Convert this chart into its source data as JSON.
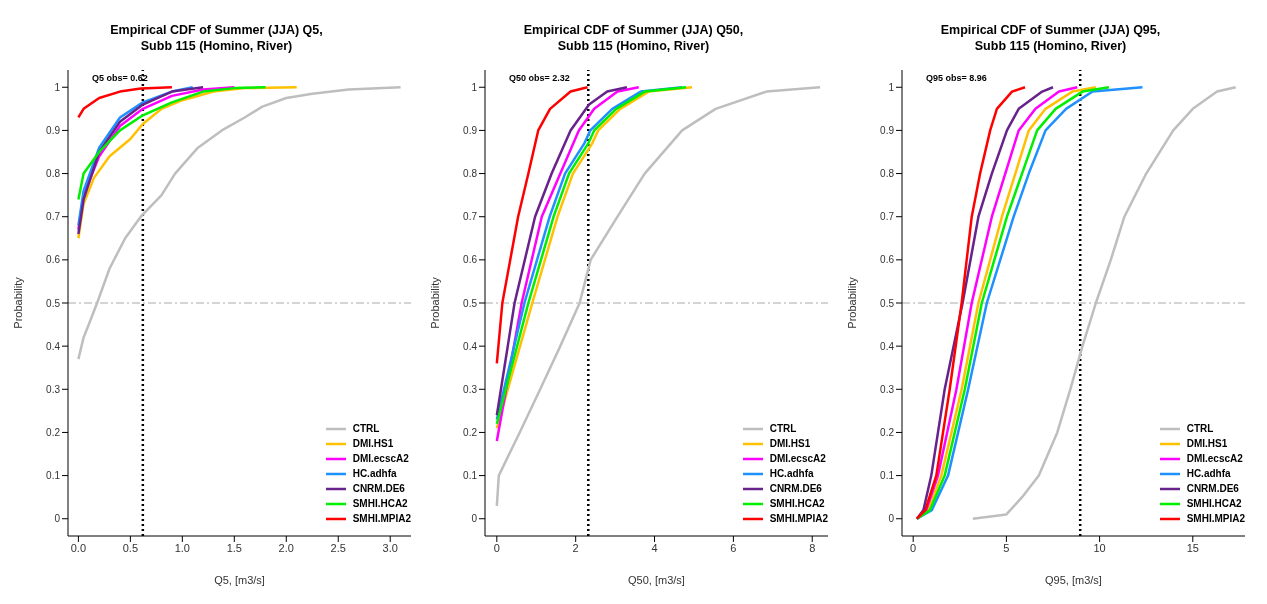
{
  "chart_data": [
    {
      "type": "line",
      "title": "Empirical CDF of Summer (JJA) Q5,\nSubb 115 (Homino, River)",
      "xlabel": "Q5, [m3/s]",
      "ylabel": "Probability",
      "xlim": [
        -0.1,
        3.2
      ],
      "xticks": [
        {
          "value": 0,
          "label": "0.0"
        },
        {
          "value": 0.5,
          "label": "0.5"
        },
        {
          "value": 1,
          "label": "1.0"
        },
        {
          "value": 1.5,
          "label": "1.5"
        },
        {
          "value": 2,
          "label": "2.0"
        },
        {
          "value": 2.5,
          "label": "2.5"
        },
        {
          "value": 3,
          "label": "3.0"
        }
      ],
      "ylim": [
        -0.04,
        1.04
      ],
      "yticks": [
        0,
        0.1,
        0.2,
        0.3,
        0.4,
        0.5,
        0.6,
        0.7,
        0.8,
        0.9,
        1
      ],
      "legend": "bottom right",
      "marker": "none",
      "annotations": [
        "Q5 obs= 0.62"
      ],
      "ref_lines": [
        {
          "axis": "x",
          "value": 0.62,
          "color": "#000000",
          "line_style": "dotted"
        },
        {
          "axis": "y",
          "value": 0.5,
          "color": "#aaaaaa",
          "line_style": "dashed"
        }
      ],
      "series": [
        {
          "name": "CTRL",
          "color": "#bebebe",
          "x": [
            0,
            0.05,
            0.1,
            0.18,
            0.3,
            0.45,
            0.6,
            0.8,
            0.93,
            1.15,
            1.38,
            1.6,
            1.77,
            2.0,
            2.25,
            2.6,
            3.1
          ],
          "values": [
            0.37,
            0.42,
            0.45,
            0.5,
            0.58,
            0.65,
            0.7,
            0.75,
            0.8,
            0.86,
            0.9,
            0.93,
            0.955,
            0.975,
            0.985,
            0.995,
            1
          ]
        },
        {
          "name": "DMI.HS1",
          "color": "#ffc000",
          "x": [
            0,
            0.05,
            0.15,
            0.3,
            0.5,
            0.62,
            0.8,
            1.0,
            1.3,
            1.6,
            2.1
          ],
          "values": [
            0.65,
            0.73,
            0.79,
            0.84,
            0.88,
            0.915,
            0.95,
            0.97,
            0.99,
            0.998,
            1
          ]
        },
        {
          "name": "DMI.ecscA2",
          "color": "#ff00ff",
          "x": [
            0,
            0.05,
            0.2,
            0.4,
            0.62,
            0.9,
            1.2,
            1.5
          ],
          "values": [
            0.67,
            0.75,
            0.84,
            0.91,
            0.95,
            0.98,
            0.995,
            1
          ]
        },
        {
          "name": "HC.adhfa",
          "color": "#1e90ff",
          "x": [
            0,
            0.05,
            0.2,
            0.4,
            0.62,
            0.9,
            1.1
          ],
          "values": [
            0.68,
            0.76,
            0.86,
            0.93,
            0.965,
            0.99,
            1
          ]
        },
        {
          "name": "CNRM.DE6",
          "color": "#68228b",
          "x": [
            0,
            0.05,
            0.2,
            0.4,
            0.62,
            0.9,
            1.2
          ],
          "values": [
            0.66,
            0.74,
            0.85,
            0.92,
            0.96,
            0.99,
            1
          ]
        },
        {
          "name": "SMHI.HCA2",
          "color": "#00ee00",
          "x": [
            0,
            0.05,
            0.2,
            0.4,
            0.62,
            0.9,
            1.2,
            1.5,
            1.8
          ],
          "values": [
            0.74,
            0.8,
            0.85,
            0.9,
            0.935,
            0.965,
            0.99,
            0.998,
            1
          ]
        },
        {
          "name": "SMHI.MPIA2",
          "color": "#ff0000",
          "x": [
            0,
            0.05,
            0.2,
            0.4,
            0.6,
            0.9
          ],
          "values": [
            0.93,
            0.95,
            0.975,
            0.99,
            0.997,
            1
          ]
        }
      ]
    },
    {
      "type": "line",
      "title": "Empirical CDF of Summer (JJA) Q50,\nSubb 115 (Homino, River)",
      "xlabel": "Q50, [m3/s]",
      "ylabel": "Probability",
      "xlim": [
        -0.3,
        8.4
      ],
      "xticks": [
        0,
        2,
        4,
        6,
        8
      ],
      "ylim": [
        -0.04,
        1.04
      ],
      "yticks": [
        0,
        0.1,
        0.2,
        0.3,
        0.4,
        0.5,
        0.6,
        0.7,
        0.8,
        0.9,
        1
      ],
      "legend": "bottom right",
      "marker": "none",
      "annotations": [
        "Q50 obs= 2.32"
      ],
      "ref_lines": [
        {
          "axis": "x",
          "value": 2.32,
          "color": "#000000",
          "line_style": "dotted"
        },
        {
          "axis": "y",
          "value": 0.5,
          "color": "#aaaaaa",
          "line_style": "dashed"
        }
      ],
      "series": [
        {
          "name": "CTRL",
          "color": "#bebebe",
          "x": [
            0,
            0.05,
            0.58,
            1.1,
            1.61,
            2.1,
            2.38,
            3.06,
            3.75,
            4.7,
            5.55,
            6.84,
            8.2
          ],
          "values": [
            0.03,
            0.1,
            0.2,
            0.3,
            0.4,
            0.5,
            0.6,
            0.7,
            0.8,
            0.9,
            0.95,
            0.99,
            1
          ]
        },
        {
          "name": "DMI.HS1",
          "color": "#ffc000",
          "x": [
            0,
            0.9,
            1.54,
            1.93,
            2.42,
            2.57,
            3.13,
            3.85,
            4.95
          ],
          "values": [
            0.21,
            0.5,
            0.7,
            0.8,
            0.87,
            0.9,
            0.95,
            0.99,
            1
          ]
        },
        {
          "name": "DMI.ecscA2",
          "color": "#ff00ff",
          "x": [
            0,
            0.63,
            1.14,
            1.61,
            2.08,
            2.47,
            3.06,
            3.6
          ],
          "values": [
            0.18,
            0.5,
            0.7,
            0.8,
            0.9,
            0.95,
            0.99,
            1
          ]
        },
        {
          "name": "HC.adhfa",
          "color": "#1e90ff",
          "x": [
            0,
            0.7,
            1.34,
            1.73,
            2.22,
            2.37,
            2.93,
            3.65,
            4.7
          ],
          "values": [
            0.23,
            0.5,
            0.7,
            0.8,
            0.87,
            0.9,
            0.95,
            0.99,
            1
          ]
        },
        {
          "name": "CNRM.DE6",
          "color": "#68228b",
          "x": [
            0,
            0.45,
            0.97,
            1.39,
            1.87,
            2.34,
            2.8,
            3.3
          ],
          "values": [
            0.24,
            0.5,
            0.7,
            0.8,
            0.9,
            0.96,
            0.99,
            1
          ]
        },
        {
          "name": "SMHI.HCA2",
          "color": "#00ee00",
          "x": [
            0,
            0.8,
            1.44,
            1.83,
            2.32,
            2.47,
            3.03,
            3.75,
            4.8
          ],
          "values": [
            0.22,
            0.5,
            0.7,
            0.8,
            0.87,
            0.9,
            0.95,
            0.99,
            1
          ]
        },
        {
          "name": "SMHI.MPIA2",
          "color": "#ff0000",
          "x": [
            0,
            0.14,
            0.54,
            0.8,
            1.05,
            1.35,
            1.87,
            2.3
          ],
          "values": [
            0.36,
            0.5,
            0.7,
            0.8,
            0.9,
            0.95,
            0.99,
            1
          ]
        }
      ]
    },
    {
      "type": "line",
      "title": "Empirical CDF of Summer (JJA) Q95,\nSubb 115 (Homino, River)",
      "xlabel": "Q95, [m3/s]",
      "ylabel": "Probability",
      "xlim": [
        -0.6,
        17.8
      ],
      "xticks": [
        0,
        5,
        10,
        15
      ],
      "ylim": [
        -0.04,
        1.04
      ],
      "yticks": [
        0,
        0.1,
        0.2,
        0.3,
        0.4,
        0.5,
        0.6,
        0.7,
        0.8,
        0.9,
        1
      ],
      "legend": "bottom right",
      "marker": "none",
      "annotations": [
        "Q95 obs= 8.96"
      ],
      "ref_lines": [
        {
          "axis": "x",
          "value": 8.96,
          "color": "#000000",
          "line_style": "dotted"
        },
        {
          "axis": "y",
          "value": 0.5,
          "color": "#aaaaaa",
          "line_style": "dashed"
        }
      ],
      "series": [
        {
          "name": "CTRL",
          "color": "#bebebe",
          "x": [
            3.2,
            5.0,
            5.84,
            6.74,
            7.73,
            8.43,
            9.08,
            9.8,
            10.6,
            11.33,
            12.5,
            13.95,
            15.0,
            16.3,
            17.3
          ],
          "values": [
            0,
            0.01,
            0.05,
            0.1,
            0.2,
            0.3,
            0.4,
            0.5,
            0.6,
            0.7,
            0.8,
            0.9,
            0.95,
            0.99,
            1
          ]
        },
        {
          "name": "DMI.HS1",
          "color": "#ffc000",
          "x": [
            0.2,
            0.8,
            1.51,
            2.6,
            3.5,
            4.76,
            5.48,
            6.2,
            7.1,
            8.54,
            9.8
          ],
          "values": [
            0,
            0.02,
            0.1,
            0.3,
            0.5,
            0.7,
            0.8,
            0.9,
            0.95,
            0.99,
            1
          ]
        },
        {
          "name": "DMI.ecscA2",
          "color": "#ff00ff",
          "x": [
            0.2,
            0.7,
            1.33,
            2.32,
            3.14,
            4.22,
            4.94,
            5.66,
            6.56,
            7.82,
            8.8
          ],
          "values": [
            0,
            0.02,
            0.1,
            0.3,
            0.5,
            0.7,
            0.8,
            0.9,
            0.95,
            0.99,
            1
          ]
        },
        {
          "name": "HC.adhfa",
          "color": "#1e90ff",
          "x": [
            0.2,
            1.0,
            1.87,
            2.95,
            3.95,
            5.39,
            6.2,
            7.1,
            8.2,
            9.62,
            12.3
          ],
          "values": [
            0,
            0.02,
            0.1,
            0.3,
            0.5,
            0.7,
            0.8,
            0.9,
            0.95,
            0.99,
            1
          ]
        },
        {
          "name": "CNRM.DE6",
          "color": "#68228b",
          "x": [
            0.2,
            0.55,
            0.97,
            1.69,
            2.65,
            3.5,
            4.22,
            5.03,
            5.66,
            6.92,
            7.5
          ],
          "values": [
            0,
            0.02,
            0.1,
            0.3,
            0.5,
            0.7,
            0.8,
            0.9,
            0.95,
            0.99,
            1
          ]
        },
        {
          "name": "SMHI.HCA2",
          "color": "#00ee00",
          "x": [
            0.2,
            0.9,
            1.69,
            2.77,
            3.68,
            5.03,
            5.84,
            6.65,
            7.64,
            9.08,
            10.5
          ],
          "values": [
            0,
            0.02,
            0.1,
            0.3,
            0.5,
            0.7,
            0.8,
            0.9,
            0.95,
            0.99,
            1
          ]
        },
        {
          "name": "SMHI.MPIA2",
          "color": "#ff0000",
          "x": [
            0.2,
            0.65,
            1.24,
            1.96,
            2.6,
            3.14,
            3.59,
            4.13,
            4.49,
            5.3,
            6.0
          ],
          "values": [
            0,
            0.02,
            0.1,
            0.3,
            0.5,
            0.7,
            0.8,
            0.9,
            0.95,
            0.99,
            1
          ]
        }
      ]
    }
  ]
}
